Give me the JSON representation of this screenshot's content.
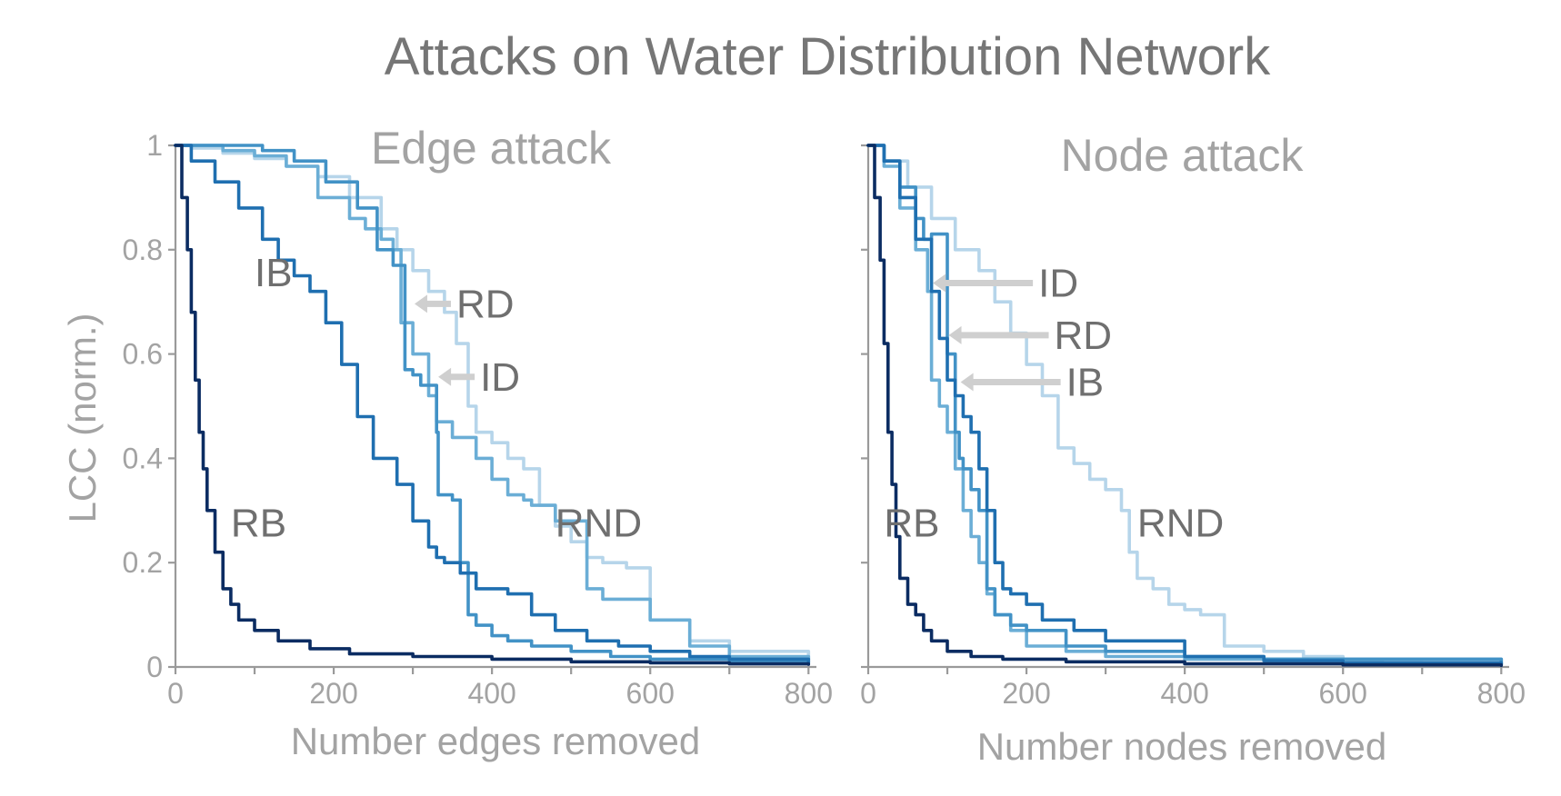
{
  "title": "Attacks on Water Distribution Network",
  "ylabel": "LCC (norm.)",
  "colors": {
    "RND": "#b6d5ea",
    "RD": "#6baed6",
    "ID": "#4292c6",
    "IB": "#1f6fb0",
    "RB": "#0b2c62"
  },
  "chart_data": [
    {
      "type": "line",
      "title": "Edge attack",
      "xlabel": "Number edges removed",
      "ylabel": "LCC (norm.)",
      "xlim": [
        0,
        810
      ],
      "ylim": [
        0,
        1
      ],
      "xticks": [
        0,
        200,
        400,
        600,
        800
      ],
      "yticks": [
        0,
        0.2,
        0.4,
        0.6,
        0.8,
        1
      ],
      "ytick_labels": [
        "0",
        "0.2",
        "0.4",
        "0.6",
        "0.8",
        "1"
      ],
      "grid": false,
      "annotations": [
        {
          "text": "IB",
          "x": 100,
          "y": 0.73,
          "arrow": false
        },
        {
          "text": "RD",
          "x": 355,
          "y": 0.67,
          "arrow": true
        },
        {
          "text": "ID",
          "x": 385,
          "y": 0.53,
          "arrow": true
        },
        {
          "text": "RB",
          "x": 70,
          "y": 0.25,
          "arrow": false
        },
        {
          "text": "RND",
          "x": 480,
          "y": 0.25,
          "arrow": false
        }
      ],
      "series": [
        {
          "name": "RND",
          "x": [
            0,
            20,
            60,
            100,
            140,
            180,
            220,
            260,
            280,
            300,
            320,
            340,
            355,
            370,
            380,
            400,
            420,
            440,
            460,
            480,
            500,
            520,
            540,
            550,
            570,
            600,
            650,
            700,
            800
          ],
          "y": [
            1.0,
            0.995,
            0.985,
            0.975,
            0.96,
            0.94,
            0.9,
            0.84,
            0.8,
            0.76,
            0.72,
            0.68,
            0.62,
            0.5,
            0.45,
            0.43,
            0.4,
            0.38,
            0.31,
            0.27,
            0.24,
            0.21,
            0.2,
            0.2,
            0.19,
            0.09,
            0.05,
            0.03,
            0.015
          ]
        },
        {
          "name": "RD",
          "x": [
            0,
            60,
            100,
            140,
            180,
            220,
            240,
            260,
            275,
            285,
            300,
            320,
            330,
            350,
            380,
            400,
            420,
            440,
            450,
            480,
            520,
            540,
            600,
            650,
            700,
            800
          ],
          "y": [
            1.0,
            0.99,
            0.98,
            0.96,
            0.9,
            0.86,
            0.84,
            0.82,
            0.8,
            0.66,
            0.6,
            0.52,
            0.47,
            0.44,
            0.4,
            0.36,
            0.33,
            0.32,
            0.31,
            0.28,
            0.15,
            0.13,
            0.09,
            0.04,
            0.02,
            0.015
          ]
        },
        {
          "name": "ID",
          "x": [
            0,
            90,
            110,
            150,
            190,
            230,
            255,
            275,
            290,
            300,
            310,
            330,
            332,
            350,
            360,
            370,
            380,
            400,
            420,
            450,
            500,
            550,
            600,
            700,
            800
          ],
          "y": [
            1.0,
            1.0,
            0.99,
            0.97,
            0.93,
            0.88,
            0.8,
            0.77,
            0.57,
            0.56,
            0.54,
            0.45,
            0.33,
            0.32,
            0.2,
            0.1,
            0.08,
            0.06,
            0.05,
            0.04,
            0.03,
            0.02,
            0.015,
            0.01,
            0.008
          ]
        },
        {
          "name": "IB",
          "x": [
            0,
            20,
            50,
            80,
            110,
            130,
            150,
            170,
            190,
            210,
            230,
            250,
            280,
            300,
            320,
            330,
            340,
            360,
            380,
            420,
            450,
            480,
            520,
            560,
            600,
            650,
            700,
            800
          ],
          "y": [
            1.0,
            0.97,
            0.93,
            0.88,
            0.82,
            0.78,
            0.75,
            0.72,
            0.66,
            0.58,
            0.48,
            0.4,
            0.35,
            0.28,
            0.23,
            0.21,
            0.2,
            0.18,
            0.15,
            0.14,
            0.1,
            0.07,
            0.05,
            0.04,
            0.03,
            0.02,
            0.015,
            0.01
          ]
        },
        {
          "name": "RB",
          "x": [
            0,
            8,
            15,
            20,
            25,
            30,
            35,
            40,
            50,
            60,
            70,
            80,
            100,
            130,
            170,
            220,
            300,
            400,
            500,
            600,
            700,
            800
          ],
          "y": [
            1.0,
            0.9,
            0.8,
            0.68,
            0.55,
            0.45,
            0.38,
            0.3,
            0.22,
            0.15,
            0.12,
            0.09,
            0.07,
            0.05,
            0.035,
            0.025,
            0.02,
            0.015,
            0.01,
            0.008,
            0.006,
            0.005
          ]
        }
      ]
    },
    {
      "type": "line",
      "title": "Node attack",
      "xlabel": "Number nodes removed",
      "ylabel": "",
      "xlim": [
        0,
        810
      ],
      "ylim": [
        0,
        1
      ],
      "xticks": [
        0,
        200,
        400,
        600,
        800
      ],
      "yticks": [
        0,
        0.2,
        0.4,
        0.6,
        0.8,
        1
      ],
      "grid": false,
      "annotations": [
        {
          "text": "ID",
          "x": 215,
          "y": 0.71,
          "arrow": true
        },
        {
          "text": "RD",
          "x": 235,
          "y": 0.61,
          "arrow": true
        },
        {
          "text": "IB",
          "x": 250,
          "y": 0.52,
          "arrow": true
        },
        {
          "text": "RB",
          "x": 20,
          "y": 0.25,
          "arrow": false
        },
        {
          "text": "RND",
          "x": 340,
          "y": 0.25,
          "arrow": false
        }
      ],
      "series": [
        {
          "name": "RND",
          "x": [
            0,
            20,
            50,
            80,
            110,
            140,
            160,
            180,
            200,
            220,
            240,
            260,
            280,
            300,
            320,
            330,
            340,
            360,
            380,
            400,
            420,
            450,
            500,
            550,
            600,
            650,
            700,
            800
          ],
          "y": [
            1.0,
            0.97,
            0.92,
            0.86,
            0.8,
            0.76,
            0.7,
            0.64,
            0.58,
            0.52,
            0.42,
            0.39,
            0.36,
            0.34,
            0.3,
            0.22,
            0.17,
            0.15,
            0.12,
            0.11,
            0.1,
            0.04,
            0.03,
            0.02,
            0.01,
            0.008,
            0.005,
            0.004
          ]
        },
        {
          "name": "RD",
          "x": [
            0,
            20,
            40,
            60,
            75,
            80,
            90,
            100,
            110,
            120,
            130,
            140,
            150,
            160,
            180,
            200,
            250,
            300,
            400,
            800
          ],
          "y": [
            1.0,
            0.96,
            0.88,
            0.8,
            0.72,
            0.55,
            0.5,
            0.45,
            0.38,
            0.3,
            0.25,
            0.2,
            0.14,
            0.1,
            0.07,
            0.04,
            0.03,
            0.02,
            0.015,
            0.005
          ]
        },
        {
          "name": "ID",
          "x": [
            0,
            20,
            40,
            60,
            70,
            80,
            100,
            110,
            115,
            120,
            130,
            140,
            150,
            160,
            180,
            200,
            250,
            300,
            400,
            500,
            800
          ],
          "y": [
            1.0,
            0.97,
            0.92,
            0.86,
            0.82,
            0.83,
            0.6,
            0.45,
            0.4,
            0.38,
            0.34,
            0.3,
            0.15,
            0.1,
            0.08,
            0.07,
            0.04,
            0.03,
            0.02,
            0.015,
            0.005
          ]
        },
        {
          "name": "IB",
          "x": [
            0,
            20,
            40,
            60,
            80,
            90,
            100,
            110,
            120,
            130,
            140,
            150,
            160,
            170,
            180,
            200,
            220,
            260,
            300,
            400,
            500,
            600,
            800
          ],
          "y": [
            1.0,
            0.97,
            0.9,
            0.82,
            0.72,
            0.63,
            0.55,
            0.52,
            0.48,
            0.45,
            0.38,
            0.3,
            0.2,
            0.15,
            0.14,
            0.12,
            0.09,
            0.07,
            0.05,
            0.02,
            0.012,
            0.008,
            0.005
          ]
        },
        {
          "name": "RB",
          "x": [
            0,
            8,
            15,
            20,
            25,
            30,
            35,
            40,
            50,
            60,
            70,
            80,
            100,
            130,
            170,
            250,
            400,
            600,
            800
          ],
          "y": [
            1.0,
            0.9,
            0.78,
            0.62,
            0.45,
            0.35,
            0.25,
            0.17,
            0.12,
            0.1,
            0.07,
            0.05,
            0.03,
            0.02,
            0.015,
            0.01,
            0.006,
            0.004,
            0.003
          ]
        }
      ]
    }
  ]
}
